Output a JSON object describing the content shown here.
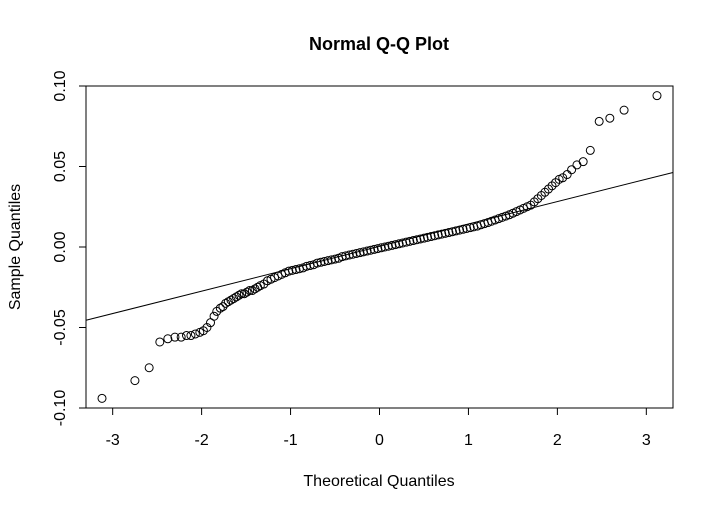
{
  "chart_data": {
    "type": "scatter",
    "title": "Normal Q-Q Plot",
    "xlabel": "Theoretical Quantiles",
    "ylabel": "Sample Quantiles",
    "xlim": [
      -3.3,
      3.3
    ],
    "ylim": [
      -0.1,
      0.1
    ],
    "x_ticks": [
      -3,
      -2,
      -1,
      0,
      1,
      2,
      3
    ],
    "x_tick_labels": [
      "-3",
      "-2",
      "-1",
      "0",
      "1",
      "2",
      "3"
    ],
    "y_ticks": [
      -0.1,
      -0.05,
      0.0,
      0.05,
      0.1
    ],
    "y_tick_labels": [
      "-0.10",
      "-0.05",
      "0.00",
      "0.05",
      "0.10"
    ],
    "grid": false,
    "reference_line": {
      "x": [
        -3.3,
        3.3
      ],
      "y": [
        -0.0455,
        0.0463
      ]
    },
    "points": [
      [
        -3.12,
        -0.094
      ],
      [
        -2.75,
        -0.083
      ],
      [
        -2.59,
        -0.075
      ],
      [
        -2.47,
        -0.059
      ],
      [
        -2.38,
        -0.057
      ],
      [
        -2.3,
        -0.056
      ],
      [
        -2.23,
        -0.056
      ],
      [
        -2.17,
        -0.055
      ],
      [
        -2.12,
        -0.055
      ],
      [
        -2.07,
        -0.054
      ],
      [
        -2.02,
        -0.053
      ],
      [
        -1.98,
        -0.052
      ],
      [
        -1.94,
        -0.05
      ],
      [
        -1.9,
        -0.047
      ],
      [
        -1.86,
        -0.043
      ],
      [
        -1.83,
        -0.04
      ],
      [
        -1.79,
        -0.038
      ],
      [
        -1.76,
        -0.037
      ],
      [
        -1.73,
        -0.035
      ],
      [
        -1.7,
        -0.034
      ],
      [
        -1.67,
        -0.033
      ],
      [
        -1.64,
        -0.032
      ],
      [
        -1.61,
        -0.031
      ],
      [
        -1.58,
        -0.03
      ],
      [
        -1.55,
        -0.029
      ],
      [
        -1.52,
        -0.029
      ],
      [
        -1.49,
        -0.028
      ],
      [
        -1.46,
        -0.027
      ],
      [
        -1.43,
        -0.027
      ],
      [
        -1.4,
        -0.026
      ],
      [
        -1.37,
        -0.025
      ],
      [
        -1.34,
        -0.024
      ],
      [
        -1.3,
        -0.023
      ],
      [
        -1.26,
        -0.021
      ],
      [
        -1.22,
        -0.02
      ],
      [
        -1.18,
        -0.019
      ],
      [
        -1.14,
        -0.018
      ],
      [
        -1.1,
        -0.017
      ],
      [
        -1.06,
        -0.016
      ],
      [
        -1.02,
        -0.015
      ],
      [
        -0.98,
        -0.0145
      ],
      [
        -0.94,
        -0.014
      ],
      [
        -0.9,
        -0.0135
      ],
      [
        -0.86,
        -0.013
      ],
      [
        -0.82,
        -0.012
      ],
      [
        -0.78,
        -0.0115
      ],
      [
        -0.74,
        -0.011
      ],
      [
        -0.7,
        -0.01
      ],
      [
        -0.66,
        -0.0095
      ],
      [
        -0.62,
        -0.009
      ],
      [
        -0.58,
        -0.0085
      ],
      [
        -0.54,
        -0.008
      ],
      [
        -0.5,
        -0.0075
      ],
      [
        -0.46,
        -0.007
      ],
      [
        -0.42,
        -0.006
      ],
      [
        -0.38,
        -0.0055
      ],
      [
        -0.34,
        -0.005
      ],
      [
        -0.3,
        -0.0045
      ],
      [
        -0.26,
        -0.004
      ],
      [
        -0.22,
        -0.0035
      ],
      [
        -0.18,
        -0.003
      ],
      [
        -0.14,
        -0.0025
      ],
      [
        -0.1,
        -0.002
      ],
      [
        -0.06,
        -0.0015
      ],
      [
        -0.02,
        -0.001
      ],
      [
        0.02,
        -0.0005
      ],
      [
        0.06,
        0.0
      ],
      [
        0.1,
        0.0005
      ],
      [
        0.14,
        0.001
      ],
      [
        0.18,
        0.0015
      ],
      [
        0.22,
        0.002
      ],
      [
        0.26,
        0.0025
      ],
      [
        0.3,
        0.003
      ],
      [
        0.34,
        0.0035
      ],
      [
        0.38,
        0.004
      ],
      [
        0.42,
        0.0045
      ],
      [
        0.46,
        0.005
      ],
      [
        0.5,
        0.0055
      ],
      [
        0.54,
        0.006
      ],
      [
        0.58,
        0.0065
      ],
      [
        0.62,
        0.007
      ],
      [
        0.66,
        0.0075
      ],
      [
        0.7,
        0.008
      ],
      [
        0.74,
        0.0085
      ],
      [
        0.78,
        0.009
      ],
      [
        0.82,
        0.0095
      ],
      [
        0.86,
        0.01
      ],
      [
        0.9,
        0.0105
      ],
      [
        0.94,
        0.011
      ],
      [
        0.98,
        0.0115
      ],
      [
        1.02,
        0.012
      ],
      [
        1.06,
        0.0125
      ],
      [
        1.1,
        0.013
      ],
      [
        1.14,
        0.0138
      ],
      [
        1.18,
        0.0145
      ],
      [
        1.22,
        0.0152
      ],
      [
        1.26,
        0.016
      ],
      [
        1.3,
        0.0168
      ],
      [
        1.34,
        0.0176
      ],
      [
        1.38,
        0.0184
      ],
      [
        1.42,
        0.0192
      ],
      [
        1.46,
        0.02
      ],
      [
        1.5,
        0.021
      ],
      [
        1.54,
        0.022
      ],
      [
        1.58,
        0.023
      ],
      [
        1.62,
        0.024
      ],
      [
        1.66,
        0.025
      ],
      [
        1.7,
        0.026
      ],
      [
        1.74,
        0.028
      ],
      [
        1.78,
        0.03
      ],
      [
        1.82,
        0.032
      ],
      [
        1.86,
        0.034
      ],
      [
        1.9,
        0.036
      ],
      [
        1.94,
        0.038
      ],
      [
        1.98,
        0.04
      ],
      [
        2.02,
        0.042
      ],
      [
        2.06,
        0.043
      ],
      [
        2.11,
        0.045
      ],
      [
        2.16,
        0.048
      ],
      [
        2.22,
        0.051
      ],
      [
        2.29,
        0.053
      ],
      [
        2.37,
        0.06
      ],
      [
        2.47,
        0.078
      ],
      [
        2.59,
        0.08
      ],
      [
        2.75,
        0.085
      ],
      [
        3.12,
        0.094
      ]
    ]
  }
}
